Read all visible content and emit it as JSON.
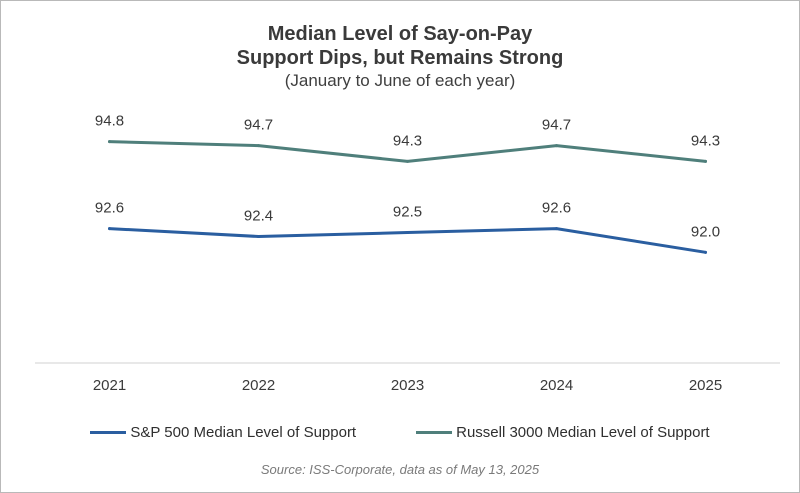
{
  "chart_data": {
    "type": "line",
    "title_line1": "Median Level of Say-on-Pay",
    "title_line2": "Support Dips, but Remains Strong",
    "subtitle": "(January to June of each year)",
    "categories": [
      "2021",
      "2022",
      "2023",
      "2024",
      "2025"
    ],
    "series": [
      {
        "name": "Russell 3000 Median Level of Support",
        "color": "#4f7f7b",
        "values": [
          94.8,
          94.7,
          94.3,
          94.7,
          94.3
        ],
        "labels": [
          "94.8",
          "94.7",
          "94.3",
          "94.7",
          "94.3"
        ]
      },
      {
        "name": "S&P 500 Median Level of Support",
        "color": "#2a5ea0",
        "values": [
          92.6,
          92.4,
          92.5,
          92.6,
          92.0
        ],
        "labels": [
          "92.6",
          "92.4",
          "92.5",
          "92.6",
          "92.0"
        ]
      }
    ],
    "legend_order": [
      1,
      0
    ],
    "legend_position": "bottom",
    "ylim": [
      89.2,
      95.6
    ],
    "grid": false,
    "xlabel": "",
    "ylabel": "",
    "source": "Source: ISS-Corporate, data as of May 13, 2025"
  }
}
